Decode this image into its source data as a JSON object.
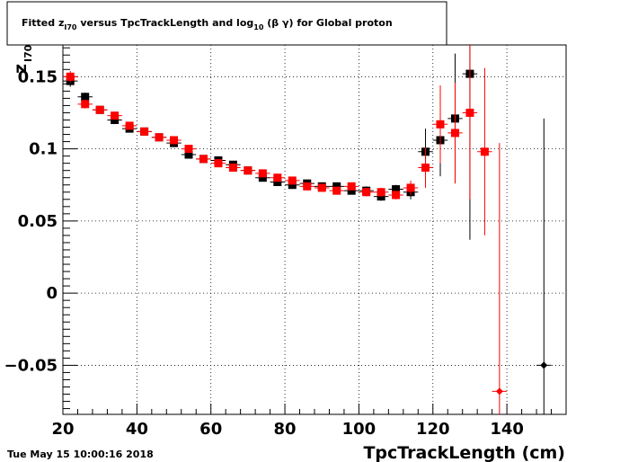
{
  "title": {
    "prefix": "Fitted  z",
    "prefix_sub": "I70",
    "middle": "  versus TpcTrackLength and log",
    "middle_sub": "10",
    "suffix": " (β γ) for Global proton"
  },
  "timestamp": "Tue May 15 10:00:16 2018",
  "chart_data": {
    "type": "scatter",
    "title": "Fitted z_I70 versus TpcTrackLength and log10 (β γ) for Global proton",
    "xlabel": "TpcTrackLength (cm)",
    "ylabel": "z",
    "ylabel_sub": "I70",
    "xlim": [
      20,
      156
    ],
    "ylim": [
      -0.084,
      0.172
    ],
    "grid": true,
    "x_ticks": [
      20,
      40,
      60,
      80,
      100,
      120,
      140
    ],
    "x_tick_labels": [
      "20",
      "40",
      "60",
      "80",
      "100",
      "120",
      "140"
    ],
    "y_ticks": [
      -0.05,
      0,
      0.05,
      0.1,
      0.15
    ],
    "y_tick_labels": [
      "−0.05",
      "0",
      "0.05",
      "0.1",
      "0.15"
    ],
    "series": [
      {
        "color": "#000000",
        "marker": "square",
        "points": [
          {
            "x": 22,
            "y": 0.147,
            "yerr": 0.004
          },
          {
            "x": 26,
            "y": 0.136,
            "yerr": 0.003
          },
          {
            "x": 30,
            "y": 0.127,
            "yerr": 0.002
          },
          {
            "x": 34,
            "y": 0.12,
            "yerr": 0.002
          },
          {
            "x": 38,
            "y": 0.114,
            "yerr": 0.002
          },
          {
            "x": 42,
            "y": 0.112,
            "yerr": 0.002
          },
          {
            "x": 46,
            "y": 0.108,
            "yerr": 0.002
          },
          {
            "x": 50,
            "y": 0.104,
            "yerr": 0.002
          },
          {
            "x": 54,
            "y": 0.096,
            "yerr": 0.002
          },
          {
            "x": 58,
            "y": 0.093,
            "yerr": 0.002
          },
          {
            "x": 62,
            "y": 0.092,
            "yerr": 0.002
          },
          {
            "x": 66,
            "y": 0.089,
            "yerr": 0.002
          },
          {
            "x": 70,
            "y": 0.085,
            "yerr": 0.002
          },
          {
            "x": 74,
            "y": 0.08,
            "yerr": 0.002
          },
          {
            "x": 78,
            "y": 0.077,
            "yerr": 0.002
          },
          {
            "x": 82,
            "y": 0.075,
            "yerr": 0.002
          },
          {
            "x": 86,
            "y": 0.076,
            "yerr": 0.002
          },
          {
            "x": 90,
            "y": 0.074,
            "yerr": 0.002
          },
          {
            "x": 94,
            "y": 0.074,
            "yerr": 0.002
          },
          {
            "x": 98,
            "y": 0.071,
            "yerr": 0.002
          },
          {
            "x": 102,
            "y": 0.071,
            "yerr": 0.003
          },
          {
            "x": 106,
            "y": 0.067,
            "yerr": 0.003
          },
          {
            "x": 110,
            "y": 0.072,
            "yerr": 0.003
          },
          {
            "x": 114,
            "y": 0.07,
            "yerr": 0.005
          },
          {
            "x": 118,
            "y": 0.098,
            "yerr": 0.016
          },
          {
            "x": 122,
            "y": 0.106,
            "yerr": 0.025
          },
          {
            "x": 126,
            "y": 0.121,
            "yerr": 0.045
          },
          {
            "x": 130,
            "y": 0.152,
            "yerr": 0.115
          },
          {
            "x": 150,
            "y": -0.05,
            "yerr": 0.171,
            "marker": "diamond"
          }
        ]
      },
      {
        "color": "#ff0000",
        "marker": "square",
        "points": [
          {
            "x": 22,
            "y": 0.15,
            "yerr": 0.004
          },
          {
            "x": 26,
            "y": 0.131,
            "yerr": 0.003
          },
          {
            "x": 30,
            "y": 0.127,
            "yerr": 0.002
          },
          {
            "x": 34,
            "y": 0.123,
            "yerr": 0.002
          },
          {
            "x": 38,
            "y": 0.116,
            "yerr": 0.002
          },
          {
            "x": 42,
            "y": 0.112,
            "yerr": 0.002
          },
          {
            "x": 46,
            "y": 0.108,
            "yerr": 0.002
          },
          {
            "x": 50,
            "y": 0.106,
            "yerr": 0.002
          },
          {
            "x": 54,
            "y": 0.1,
            "yerr": 0.002
          },
          {
            "x": 58,
            "y": 0.093,
            "yerr": 0.002
          },
          {
            "x": 62,
            "y": 0.09,
            "yerr": 0.002
          },
          {
            "x": 66,
            "y": 0.087,
            "yerr": 0.002
          },
          {
            "x": 70,
            "y": 0.085,
            "yerr": 0.002
          },
          {
            "x": 74,
            "y": 0.083,
            "yerr": 0.002
          },
          {
            "x": 78,
            "y": 0.08,
            "yerr": 0.002
          },
          {
            "x": 82,
            "y": 0.078,
            "yerr": 0.002
          },
          {
            "x": 86,
            "y": 0.074,
            "yerr": 0.002
          },
          {
            "x": 90,
            "y": 0.073,
            "yerr": 0.002
          },
          {
            "x": 94,
            "y": 0.071,
            "yerr": 0.002
          },
          {
            "x": 98,
            "y": 0.074,
            "yerr": 0.002
          },
          {
            "x": 102,
            "y": 0.07,
            "yerr": 0.003
          },
          {
            "x": 106,
            "y": 0.07,
            "yerr": 0.003
          },
          {
            "x": 110,
            "y": 0.068,
            "yerr": 0.003
          },
          {
            "x": 114,
            "y": 0.073,
            "yerr": 0.005
          },
          {
            "x": 118,
            "y": 0.087,
            "yerr": 0.014
          },
          {
            "x": 122,
            "y": 0.117,
            "yerr": 0.027
          },
          {
            "x": 126,
            "y": 0.111,
            "yerr": 0.035
          },
          {
            "x": 130,
            "y": 0.125,
            "yerr": 0.06
          },
          {
            "x": 134,
            "y": 0.098,
            "yerr": 0.058
          },
          {
            "x": 138,
            "y": -0.068,
            "yerr": 0.172,
            "marker": "diamond"
          }
        ]
      }
    ]
  }
}
